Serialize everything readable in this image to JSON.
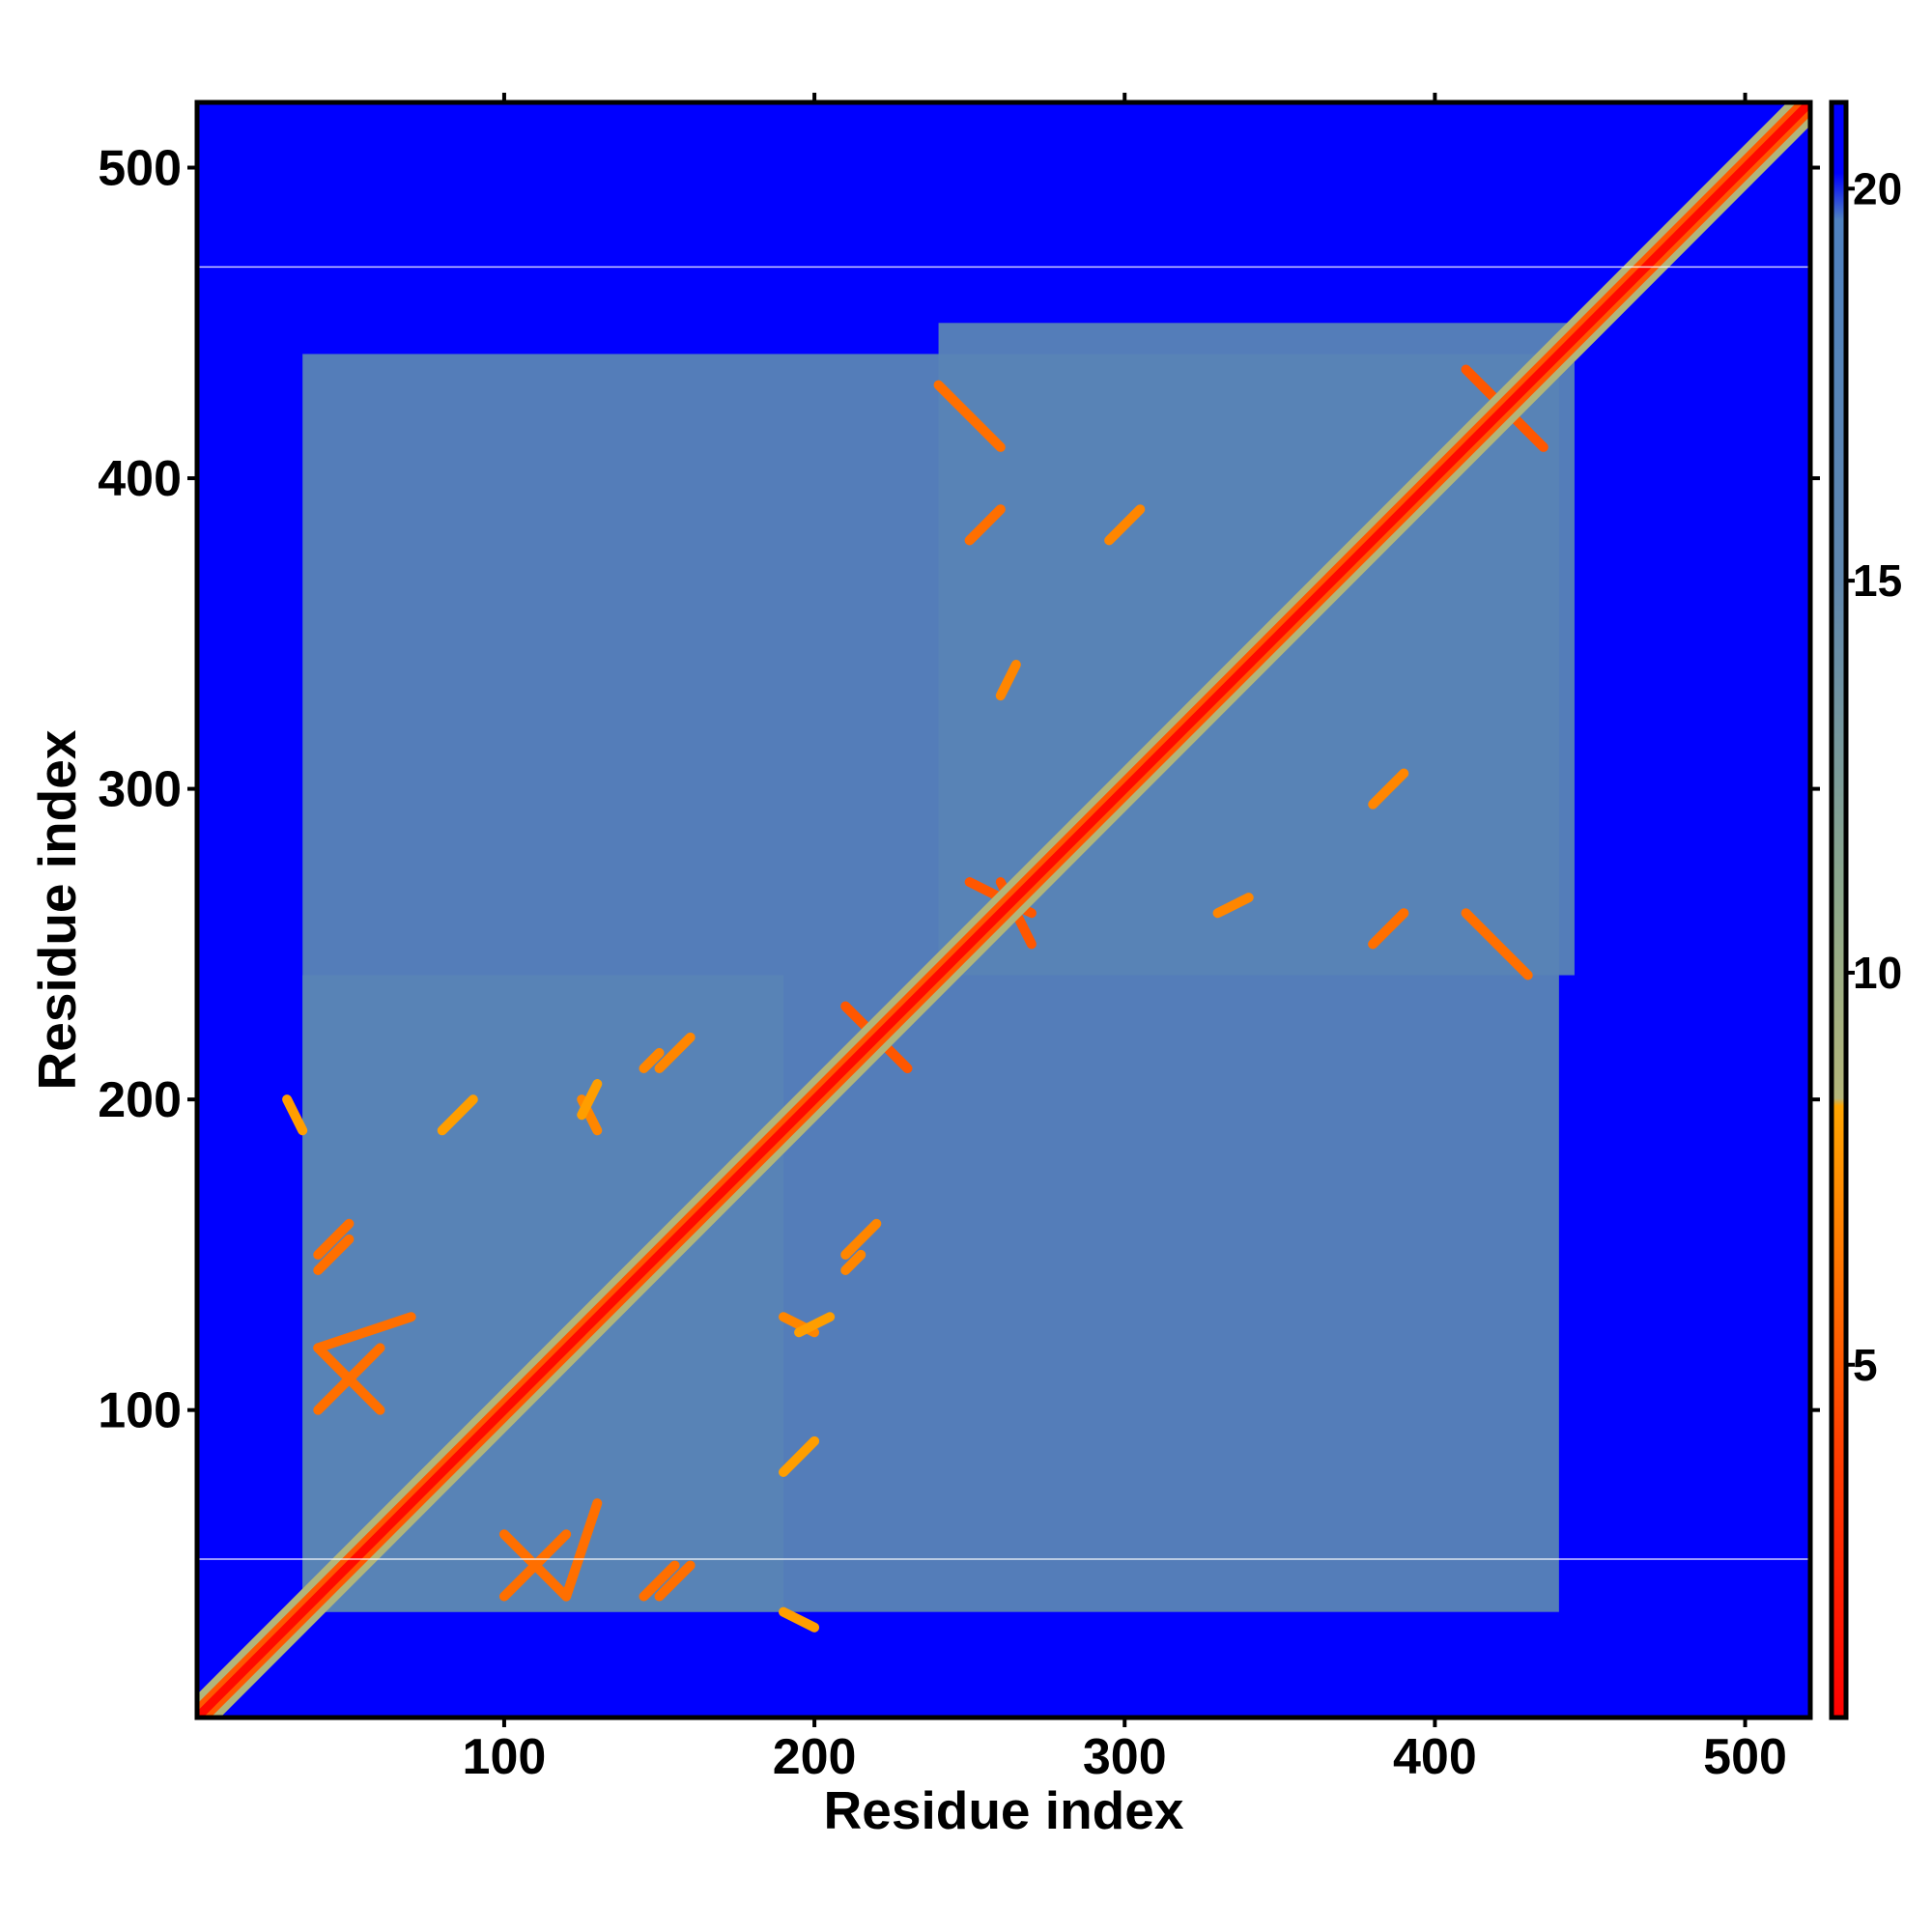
{
  "chart_data": {
    "type": "heatmap",
    "title": "",
    "xlabel": "Residue index",
    "ylabel": "Residue index",
    "xlim": [
      1,
      521
    ],
    "ylim": [
      1,
      521
    ],
    "x_ticks": [
      100,
      200,
      300,
      400,
      500
    ],
    "y_ticks": [
      100,
      200,
      300,
      400,
      500
    ],
    "x_tick_labels": [
      "100",
      "200",
      "300",
      "400",
      "500"
    ],
    "y_tick_labels": [
      "100",
      "200",
      "300",
      "400",
      "500"
    ],
    "colorbar": {
      "range": [
        0.5,
        21.1
      ],
      "ticks": [
        5,
        10,
        15,
        20
      ],
      "tick_labels": [
        "5",
        "10",
        "15",
        "20"
      ],
      "stops": [
        {
          "value": 0.5,
          "color": "#ff0000"
        },
        {
          "value": 4,
          "color": "#ff4000"
        },
        {
          "value": 8.3,
          "color": "#ffa500"
        },
        {
          "value": 8.4,
          "color": "#b4b67a"
        },
        {
          "value": 11,
          "color": "#8da88c"
        },
        {
          "value": 15,
          "color": "#5f86ad"
        },
        {
          "value": 19.6,
          "color": "#4f82c0"
        },
        {
          "value": 20.2,
          "color": "#0000ff"
        },
        {
          "value": 21.1,
          "color": "#0000ff"
        }
      ]
    },
    "background_value": 21,
    "cells_description_value_note": "distance map: diagonal ~0, contact region 8-20, outside >20",
    "diagonal_value": 1,
    "contact_regions": [
      {
        "x": [
          35,
          440
        ],
        "y": [
          35,
          440
        ],
        "value": 17
      },
      {
        "x": [
          35,
          190
        ],
        "y": [
          35,
          240
        ],
        "value": 17
      },
      {
        "x": [
          240,
          445
        ],
        "y": [
          240,
          450
        ],
        "value": 17
      }
    ],
    "gap_rows": [
      52,
      468
    ],
    "secondary_contacts": [
      {
        "x1": 40,
        "y1": 120,
        "x2": 60,
        "y2": 100,
        "value": 6
      },
      {
        "x1": 40,
        "y1": 150,
        "x2": 50,
        "y2": 160,
        "value": 6
      },
      {
        "x1": 100,
        "y1": 40,
        "x2": 120,
        "y2": 60,
        "value": 6
      },
      {
        "x1": 120,
        "y1": 40,
        "x2": 130,
        "y2": 70,
        "value": 6
      },
      {
        "x1": 145,
        "y1": 40,
        "x2": 155,
        "y2": 50,
        "value": 6
      },
      {
        "x1": 210,
        "y1": 230,
        "x2": 230,
        "y2": 210,
        "value": 5
      },
      {
        "x1": 250,
        "y1": 380,
        "x2": 260,
        "y2": 390,
        "value": 6
      },
      {
        "x1": 250,
        "y1": 420,
        "x2": 260,
        "y2": 410,
        "value": 6
      },
      {
        "x1": 260,
        "y1": 270,
        "x2": 270,
        "y2": 250,
        "value": 5
      },
      {
        "x1": 380,
        "y1": 250,
        "x2": 390,
        "y2": 260,
        "value": 6
      },
      {
        "x1": 420,
        "y1": 250,
        "x2": 430,
        "y2": 240,
        "value": 6
      },
      {
        "x1": 415,
        "y1": 430,
        "x2": 435,
        "y2": 410,
        "value": 5
      },
      {
        "x1": 295,
        "y1": 380,
        "x2": 305,
        "y2": 390,
        "value": 7
      },
      {
        "x1": 330,
        "y1": 260,
        "x2": 340,
        "y2": 265,
        "value": 7
      },
      {
        "x1": 150,
        "y1": 210,
        "x2": 160,
        "y2": 220,
        "value": 7
      },
      {
        "x1": 190,
        "y1": 130,
        "x2": 200,
        "y2": 125,
        "value": 7
      },
      {
        "x1": 215,
        "y1": 150,
        "x2": 210,
        "y2": 145,
        "value": 7
      },
      {
        "x1": 30,
        "y1": 200,
        "x2": 35,
        "y2": 190,
        "value": 8
      },
      {
        "x1": 80,
        "y1": 190,
        "x2": 90,
        "y2": 200,
        "value": 8
      },
      {
        "x1": 125,
        "y1": 195,
        "x2": 130,
        "y2": 205,
        "value": 8
      }
    ]
  }
}
